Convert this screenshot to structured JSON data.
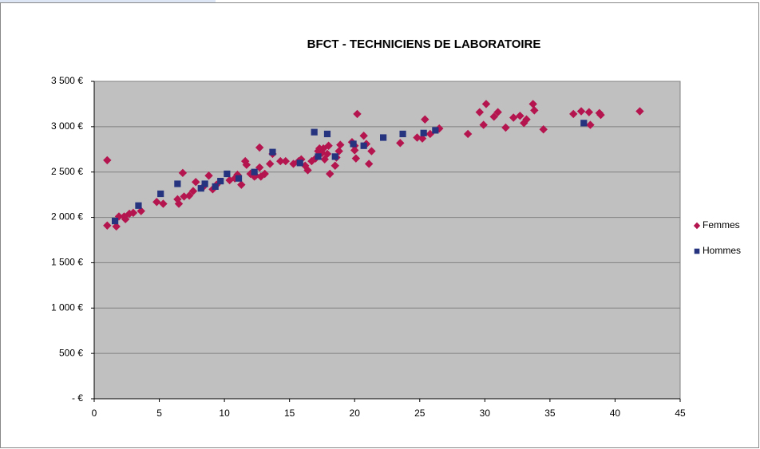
{
  "chart_data": {
    "type": "scatter",
    "title": "BFCT -  TECHNICIENS  DE LABORATOIRE",
    "xlim": [
      0,
      45
    ],
    "xticks": [
      0,
      5,
      10,
      15,
      20,
      25,
      30,
      35,
      40,
      45
    ],
    "ylim": [
      0,
      3500
    ],
    "yticks": [
      {
        "value": 0,
        "label": "-  €"
      },
      {
        "value": 500,
        "label": "500 €"
      },
      {
        "value": 1000,
        "label": "1 000 €"
      },
      {
        "value": 1500,
        "label": "1 500 €"
      },
      {
        "value": 2000,
        "label": "2 000 €"
      },
      {
        "value": 2500,
        "label": "2 500 €"
      },
      {
        "value": 3000,
        "label": "3 000 €"
      },
      {
        "value": 3500,
        "label": "3 500 €"
      }
    ],
    "grid": true,
    "legend": "right",
    "series": [
      {
        "name": "Femmes",
        "color": "#b5154e",
        "marker": "diamond",
        "x": [
          1.0,
          1.0,
          1.7,
          1.9,
          2.3,
          2.4,
          2.7,
          3.0,
          3.6,
          4.8,
          5.3,
          6.4,
          6.5,
          6.8,
          6.9,
          7.3,
          7.6,
          7.8,
          8.4,
          8.8,
          9.1,
          9.4,
          10.4,
          10.8,
          11.0,
          11.3,
          11.6,
          11.7,
          12.0,
          12.3,
          12.4,
          12.7,
          12.7,
          12.8,
          13.1,
          13.5,
          13.7,
          14.3,
          14.7,
          15.3,
          15.7,
          15.9,
          16.2,
          16.4,
          16.7,
          17.0,
          17.2,
          17.3,
          17.5,
          17.6,
          17.7,
          17.9,
          18.0,
          18.1,
          18.5,
          18.6,
          18.8,
          18.9,
          19.8,
          20.0,
          20.0,
          20.1,
          20.2,
          20.7,
          20.9,
          21.1,
          21.3,
          23.5,
          24.8,
          25.2,
          25.4,
          25.8,
          26.5,
          28.7,
          29.6,
          29.9,
          30.1,
          30.7,
          31.0,
          31.6,
          32.2,
          32.7,
          33.0,
          33.2,
          33.7,
          33.8,
          34.5,
          36.8,
          37.4,
          38.0,
          38.1,
          38.8,
          38.9,
          41.9
        ],
        "values": [
          1910,
          2630,
          1900,
          2010,
          2010,
          1980,
          2040,
          2050,
          2070,
          2170,
          2150,
          2200,
          2150,
          2490,
          2230,
          2240,
          2290,
          2390,
          2340,
          2460,
          2310,
          2360,
          2410,
          2430,
          2470,
          2360,
          2620,
          2580,
          2480,
          2450,
          2460,
          2770,
          2550,
          2450,
          2480,
          2590,
          2700,
          2620,
          2620,
          2590,
          2620,
          2640,
          2570,
          2520,
          2620,
          2650,
          2730,
          2760,
          2710,
          2760,
          2640,
          2700,
          2790,
          2480,
          2570,
          2660,
          2730,
          2800,
          2830,
          2790,
          2740,
          2650,
          3140,
          2900,
          2810,
          2590,
          2730,
          2820,
          2880,
          2870,
          3080,
          2920,
          2980,
          2920,
          3160,
          3020,
          3250,
          3110,
          3160,
          2990,
          3100,
          3120,
          3040,
          3080,
          3250,
          3180,
          2970,
          3140,
          3170,
          3160,
          3020,
          3150,
          3130,
          3170
        ]
      },
      {
        "name": "Hommes",
        "color": "#263480",
        "marker": "square",
        "x": [
          1.6,
          3.4,
          5.1,
          6.4,
          8.2,
          8.5,
          9.3,
          9.7,
          10.2,
          11.1,
          12.3,
          13.7,
          15.8,
          16.9,
          17.2,
          17.9,
          18.5,
          19.9,
          20.7,
          22.2,
          23.7,
          25.3,
          26.2,
          37.6
        ],
        "values": [
          1960,
          2130,
          2260,
          2370,
          2320,
          2370,
          2340,
          2400,
          2480,
          2430,
          2500,
          2720,
          2600,
          2940,
          2670,
          2920,
          2670,
          2810,
          2790,
          2880,
          2920,
          2930,
          2960,
          3040
        ]
      }
    ]
  }
}
